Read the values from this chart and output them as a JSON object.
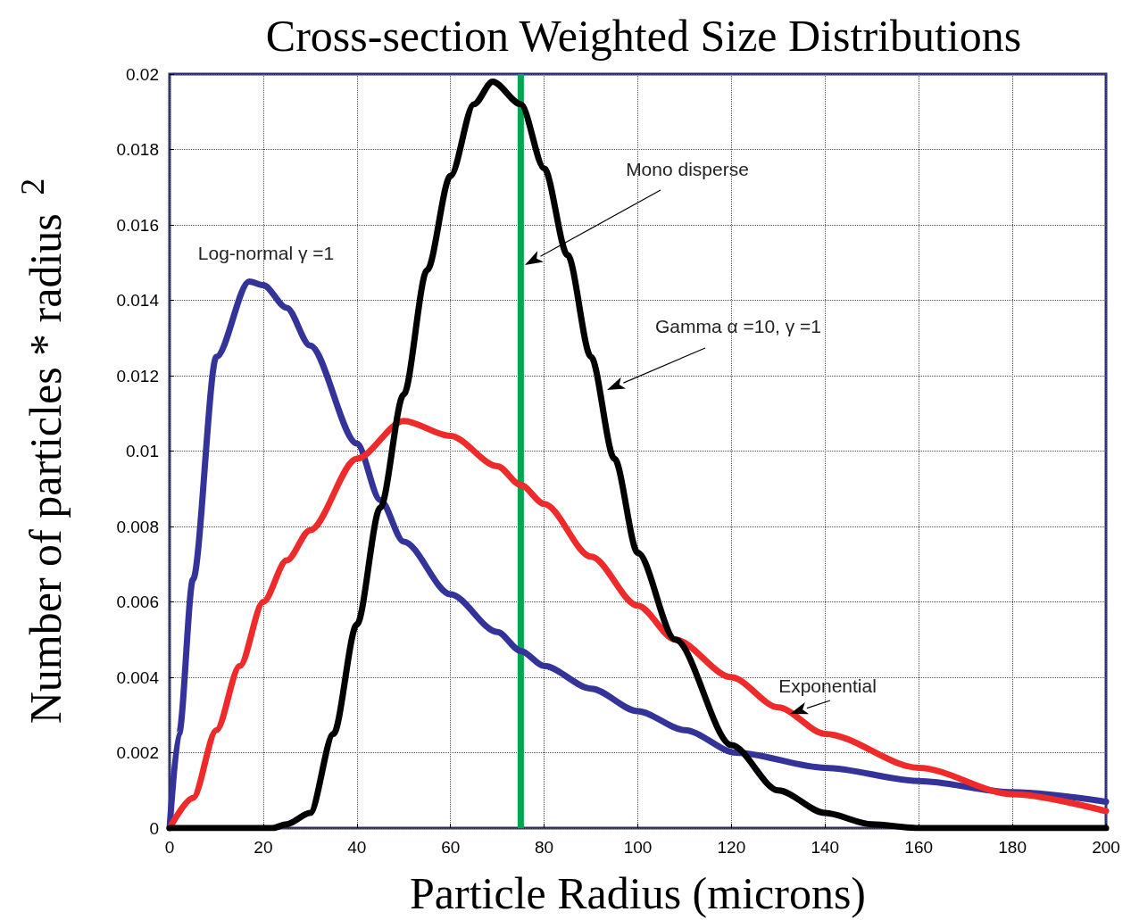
{
  "chart_data": {
    "type": "line",
    "title": "Cross-section Weighted Size Distributions",
    "xlabel": "Particle Radius (microns)",
    "ylabel": "Number of particles * radius $^{2}$",
    "xlim": [
      0,
      200
    ],
    "xticks": [
      0,
      20,
      40,
      60,
      80,
      100,
      120,
      140,
      160,
      180,
      200
    ],
    "ylim": [
      0,
      0.02
    ],
    "yticks": [
      0,
      0.002,
      0.004,
      0.006,
      0.008,
      0.01,
      0.012,
      0.014,
      0.016,
      0.018,
      0.02
    ],
    "grid": true,
    "marker": "none",
    "line_style": "solid",
    "series": [
      {
        "color": "#333399",
        "x": [
          0,
          2,
          5,
          10,
          17,
          20,
          25,
          30,
          40,
          45,
          50,
          60,
          70,
          75,
          80,
          90,
          100,
          110,
          121,
          140,
          160,
          180,
          200
        ],
        "values": [
          0,
          0.0025,
          0.0066,
          0.0125,
          0.0145,
          0.0144,
          0.0138,
          0.0128,
          0.0102,
          0.0087,
          0.0076,
          0.0062,
          0.0052,
          0.0047,
          0.0043,
          0.0037,
          0.0031,
          0.0026,
          0.002,
          0.0016,
          0.00125,
          0.00095,
          0.0007
        ]
      },
      {
        "color": "#ee2a2a",
        "x": [
          0,
          5,
          10,
          15,
          20,
          25,
          30,
          40,
          50,
          60,
          70,
          75,
          80,
          90,
          100,
          108,
          120,
          130,
          140,
          160,
          180,
          200
        ],
        "values": [
          0,
          0.0008,
          0.0026,
          0.0043,
          0.006,
          0.0071,
          0.0079,
          0.0098,
          0.0108,
          0.0104,
          0.0096,
          0.0091,
          0.0086,
          0.0072,
          0.0059,
          0.005,
          0.004,
          0.0032,
          0.0025,
          0.0016,
          0.0009,
          0.00045
        ]
      },
      {
        "color": "#000000",
        "x": [
          0,
          22,
          25,
          30,
          35,
          40,
          45,
          50,
          55,
          60,
          65,
          69,
          75,
          80,
          85,
          90,
          95,
          100,
          108,
          120,
          130,
          140,
          150,
          160,
          200
        ],
        "values": [
          0,
          0,
          0.0001,
          0.0004,
          0.0025,
          0.0054,
          0.0085,
          0.0115,
          0.0148,
          0.0173,
          0.0192,
          0.0198,
          0.0192,
          0.0175,
          0.0152,
          0.0125,
          0.0098,
          0.0073,
          0.005,
          0.0022,
          0.001,
          0.0004,
          0.0001,
          0,
          0
        ]
      }
    ],
    "ref_lines": [
      {
        "axis": "x",
        "value": 75,
        "color": "#00a650"
      }
    ],
    "annotations": [
      "Log-normal γ =1",
      "Mono disperse",
      "Gamma α =10, γ =1",
      "Exponential"
    ]
  }
}
